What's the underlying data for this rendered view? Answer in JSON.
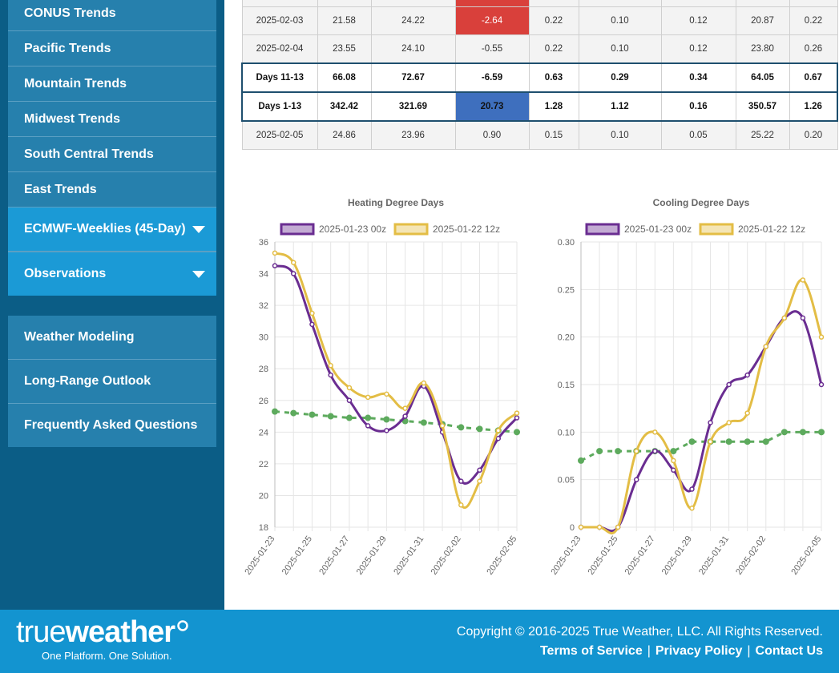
{
  "sidebar": {
    "group1": [
      "CONUS Trends",
      "Pacific Trends",
      "Mountain Trends",
      "Midwest Trends",
      "South Central Trends",
      "East Trends"
    ],
    "dropdowns": [
      "ECMWF-Weeklies (45-Day)",
      "Observations"
    ],
    "group2": [
      "Weather Modeling",
      "Long-Range Outlook",
      "Frequently Asked Questions"
    ]
  },
  "table": {
    "rows": [
      {
        "cells": [
          "2025-02-03",
          "21.58",
          "24.22",
          "-2.64",
          "0.22",
          "0.10",
          "0.12",
          "20.87",
          "0.22"
        ],
        "kind": "normal",
        "colored": {
          "3": "neg"
        }
      },
      {
        "cells": [
          "2025-02-04",
          "23.55",
          "24.10",
          "-0.55",
          "0.22",
          "0.10",
          "0.12",
          "23.80",
          "0.26"
        ],
        "kind": "normal",
        "colored": {}
      },
      {
        "cells": [
          "Days 11-13",
          "66.08",
          "72.67",
          "-6.59",
          "0.63",
          "0.29",
          "0.34",
          "64.05",
          "0.67"
        ],
        "kind": "highlight",
        "colored": {}
      },
      {
        "cells": [
          "Days 1-13",
          "342.42",
          "321.69",
          "20.73",
          "1.28",
          "1.12",
          "0.16",
          "350.57",
          "1.26"
        ],
        "kind": "highlight",
        "colored": {
          "3": "pos"
        }
      },
      {
        "cells": [
          "2025-02-05",
          "24.86",
          "23.96",
          "0.90",
          "0.15",
          "0.10",
          "0.05",
          "25.22",
          "0.20"
        ],
        "kind": "normal",
        "colored": {}
      }
    ]
  },
  "chart_data": [
    {
      "type": "line",
      "title": "Heating Degree Days",
      "x": [
        "2025-01-23",
        "2025-01-24",
        "2025-01-25",
        "2025-01-26",
        "2025-01-27",
        "2025-01-28",
        "2025-01-29",
        "2025-01-30",
        "2025-01-31",
        "2025-02-01",
        "2025-02-02",
        "2025-02-03",
        "2025-02-04",
        "2025-02-05"
      ],
      "xticks": [
        "2025-01-23",
        "2025-01-25",
        "2025-01-27",
        "2025-01-29",
        "2025-01-31",
        "2025-02-02",
        "2025-02-05"
      ],
      "ylim": [
        18,
        36
      ],
      "yticks": [
        18,
        20,
        22,
        24,
        26,
        28,
        30,
        32,
        34,
        36
      ],
      "series": [
        {
          "name": "2025-01-23 00z",
          "color": "#6a2d91",
          "values": [
            34.5,
            34.0,
            30.8,
            27.6,
            26.0,
            24.4,
            24.1,
            25.0,
            26.9,
            24.0,
            20.9,
            21.6,
            23.6,
            24.9
          ]
        },
        {
          "name": "2025-01-22 12z",
          "color": "#e3bd45",
          "values": [
            35.3,
            34.7,
            31.5,
            28.2,
            26.8,
            26.2,
            26.4,
            25.5,
            27.1,
            24.4,
            19.4,
            20.9,
            24.1,
            25.2
          ]
        },
        {
          "values": [
            25.3,
            25.2,
            25.1,
            25.0,
            24.9,
            24.9,
            24.8,
            24.7,
            24.6,
            24.5,
            24.3,
            24.2,
            24.1,
            24.0
          ],
          "color": "#5daa5d",
          "dashed": true
        }
      ]
    },
    {
      "type": "line",
      "title": "Cooling Degree Days",
      "x": [
        "2025-01-23",
        "2025-01-24",
        "2025-01-25",
        "2025-01-26",
        "2025-01-27",
        "2025-01-28",
        "2025-01-29",
        "2025-01-30",
        "2025-01-31",
        "2025-02-01",
        "2025-02-02",
        "2025-02-03",
        "2025-02-04",
        "2025-02-05"
      ],
      "xticks": [
        "2025-01-23",
        "2025-01-25",
        "2025-01-27",
        "2025-01-29",
        "2025-01-31",
        "2025-02-02",
        "2025-02-05"
      ],
      "ylim": [
        0,
        0.3
      ],
      "yticks": [
        "0",
        "0.05",
        "0.10",
        "0.15",
        "0.20",
        "0.25",
        "0.30"
      ],
      "series": [
        {
          "name": "2025-01-23 00z",
          "color": "#6a2d91",
          "values": [
            0,
            0,
            0,
            0.05,
            0.08,
            0.06,
            0.04,
            0.11,
            0.15,
            0.16,
            0.19,
            0.22,
            0.22,
            0.15
          ]
        },
        {
          "name": "2025-01-22 12z",
          "color": "#e3bd45",
          "values": [
            0,
            0,
            0,
            0.08,
            0.1,
            0.07,
            0.02,
            0.09,
            0.11,
            0.12,
            0.19,
            0.22,
            0.26,
            0.2
          ]
        },
        {
          "values": [
            0.07,
            0.08,
            0.08,
            0.08,
            0.08,
            0.08,
            0.09,
            0.09,
            0.09,
            0.09,
            0.09,
            0.1,
            0.1,
            0.1
          ],
          "color": "#5daa5d",
          "dashed": true
        }
      ]
    }
  ],
  "footer": {
    "logo_light": "true",
    "logo_bold": "weather",
    "tagline": "One Platform. One Solution.",
    "copyright": "Copyright © 2016-2025 True Weather, LLC. All Rights Reserved.",
    "links": [
      "Terms of Service",
      "Privacy Policy",
      "Contact Us"
    ]
  }
}
